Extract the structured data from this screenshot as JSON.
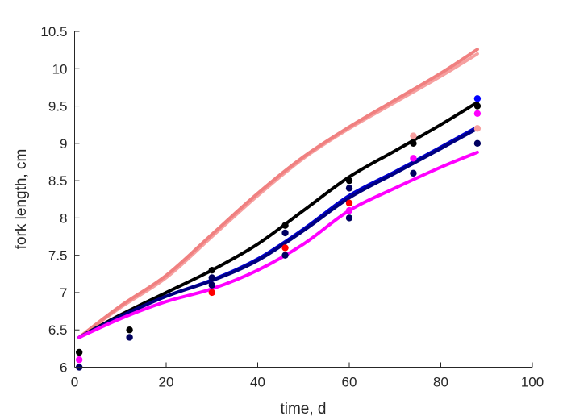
{
  "chart_data": {
    "type": "line",
    "xlabel": "time, d",
    "ylabel": "fork length, cm",
    "xlim": [
      0,
      100
    ],
    "ylim": [
      6,
      10.5
    ],
    "xticks": [
      0,
      20,
      40,
      60,
      80,
      100
    ],
    "xtick_labels": [
      "0",
      "20",
      "40",
      "60",
      "80",
      "100"
    ],
    "yticks": [
      6,
      6.5,
      7,
      7.5,
      8,
      8.5,
      9,
      9.5,
      10,
      10.5
    ],
    "ytick_labels": [
      "6",
      "6.5",
      "7",
      "7.5",
      "8",
      "8.5",
      "9",
      "9.5",
      "10",
      "10.5"
    ],
    "grid": false,
    "legend": "none",
    "series": [
      {
        "kind": "line",
        "color": "#f6a0a0",
        "x": [
          1,
          10,
          20,
          30,
          40,
          50,
          60,
          70,
          80,
          88
        ],
        "y": [
          6.4,
          6.8,
          7.2,
          7.75,
          8.3,
          8.8,
          9.2,
          9.55,
          9.9,
          10.2
        ]
      },
      {
        "kind": "line",
        "color": "#f08080",
        "x": [
          1,
          10,
          20,
          30,
          40,
          50,
          60,
          70,
          80,
          88
        ],
        "y": [
          6.4,
          6.82,
          7.23,
          7.78,
          8.33,
          8.82,
          9.22,
          9.58,
          9.94,
          10.26
        ]
      },
      {
        "kind": "line",
        "color": "#000000",
        "x": [
          1,
          10,
          20,
          30,
          40,
          50,
          60,
          70,
          80,
          88
        ],
        "y": [
          6.4,
          6.7,
          7.0,
          7.3,
          7.65,
          8.1,
          8.55,
          8.9,
          9.25,
          9.55
        ]
      },
      {
        "kind": "line",
        "color": "#0000cc",
        "x": [
          1,
          10,
          20,
          30,
          40,
          50,
          60,
          70,
          80,
          88
        ],
        "y": [
          6.4,
          6.68,
          6.95,
          7.17,
          7.45,
          7.85,
          8.3,
          8.62,
          8.95,
          9.22
        ]
      },
      {
        "kind": "line",
        "color": "#000080",
        "x": [
          1,
          10,
          20,
          30,
          40,
          50,
          60,
          70,
          80,
          88
        ],
        "y": [
          6.4,
          6.68,
          6.95,
          7.16,
          7.43,
          7.83,
          8.27,
          8.6,
          8.93,
          9.2
        ]
      },
      {
        "kind": "line",
        "color": "#ff00ff",
        "x": [
          1,
          10,
          20,
          30,
          40,
          50,
          60,
          70,
          80,
          88
        ],
        "y": [
          6.4,
          6.65,
          6.88,
          7.05,
          7.3,
          7.65,
          8.1,
          8.4,
          8.68,
          8.88
        ]
      },
      {
        "kind": "points",
        "color": "#000000",
        "x": [
          1,
          12,
          30,
          46,
          60,
          74,
          88
        ],
        "y": [
          6.2,
          6.5,
          7.3,
          7.9,
          8.5,
          9.0,
          9.5
        ]
      },
      {
        "kind": "points",
        "color": "#000060",
        "x": [
          1,
          12,
          30,
          30,
          46,
          46,
          60,
          60,
          74,
          88
        ],
        "y": [
          6.0,
          6.4,
          7.1,
          7.2,
          7.8,
          7.5,
          8.4,
          8.0,
          8.6,
          9.0
        ]
      },
      {
        "kind": "points",
        "color": "#ff00ff",
        "x": [
          1,
          60,
          74,
          88
        ],
        "y": [
          6.1,
          8.1,
          8.8,
          9.4
        ]
      },
      {
        "kind": "points",
        "color": "#ff0000",
        "x": [
          30,
          46,
          60
        ],
        "y": [
          7.0,
          7.6,
          8.2
        ]
      },
      {
        "kind": "points",
        "color": "#0000ff",
        "x": [
          88
        ],
        "y": [
          9.6
        ]
      },
      {
        "kind": "points",
        "color": "#f6a0a0",
        "x": [
          74,
          88
        ],
        "y": [
          9.1,
          9.2
        ]
      }
    ]
  }
}
